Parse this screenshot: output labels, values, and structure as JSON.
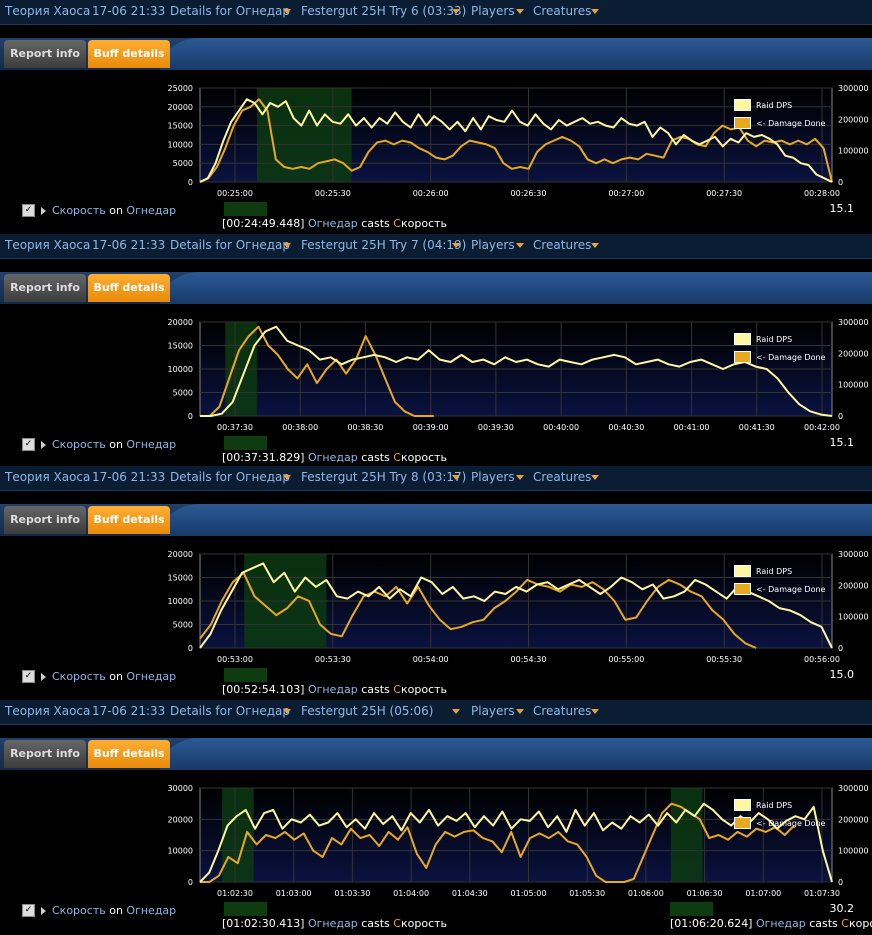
{
  "colors": {
    "raid": "#fff7a0",
    "dmg": "#e6a920",
    "buff": "#0c3a10",
    "plot_top": "#000000",
    "plot_bot": "#0a1240"
  },
  "legend": {
    "raid": "Raid DPS",
    "dmg": "<- Damage Done"
  },
  "tabs": {
    "report": "Report info",
    "buff": "Buff details"
  },
  "panels": [
    {
      "guild": "Теория Хаоса",
      "date": "17-06 21:33",
      "details": "Details for Огнедар",
      "try": "Festergut 25H Try 6 (03:33)",
      "players": "Players",
      "creatures": "Creatures",
      "check": {
        "spell": "Скорость",
        "on": "on",
        "who": "Огнедар"
      },
      "cast": {
        "time": "[00:24:49.448]",
        "who": "Огнедар",
        "verb": "casts",
        "spell_first": "С",
        "spell_rest": "корость"
      },
      "rnum": "15.1",
      "chart_data": {
        "type": "line",
        "x_ticks": [
          "00:25:00",
          "00:25:30",
          "00:26:00",
          "00:26:30",
          "00:27:00",
          "00:27:30",
          "00:28:00"
        ],
        "y_left_ticks": [
          "25000",
          "20000",
          "15000",
          "10000",
          "5000",
          "0"
        ],
        "y_right_ticks": [
          "300000",
          "200000",
          "100000",
          "0"
        ],
        "ylim_left": [
          0,
          25000
        ],
        "ylim_right": [
          0,
          300000
        ],
        "buff_spans": [
          [
            0.09,
            0.24
          ]
        ],
        "series": [
          {
            "name": "Raid DPS",
            "values": [
              0,
              1000,
              5000,
              11000,
              16000,
              19000,
              22000,
              21000,
              18000,
              21000,
              20000,
              21500,
              17000,
              15000,
              19000,
              15000,
              18000,
              16000,
              15500,
              18000,
              15000,
              17000,
              14500,
              17000,
              15500,
              18500,
              16000,
              14500,
              18000,
              15000,
              17500,
              16000,
              14000,
              16000,
              13500,
              17000,
              14000,
              17500,
              16500,
              16000,
              19000,
              16000,
              15000,
              18000,
              15500,
              14000,
              16500,
              15000,
              16000,
              17000,
              15500,
              16000,
              15000,
              14500,
              17000,
              15500,
              15000,
              16000,
              12000,
              14500,
              13000,
              10000,
              12500,
              11000,
              10000,
              11000,
              12000,
              9500,
              11500,
              10500,
              13000,
              12000,
              12500,
              11500,
              10000,
              7000,
              6500,
              5000,
              4500,
              2000,
              1000,
              0
            ]
          },
          {
            "name": "Damage Done",
            "values": [
              0,
              1000,
              4000,
              9000,
              15000,
              19000,
              20000,
              22000,
              19000,
              6000,
              4000,
              3500,
              4000,
              3500,
              5000,
              5500,
              6000,
              5000,
              3000,
              4000,
              8000,
              10500,
              11000,
              10000,
              11000,
              10500,
              9000,
              8000,
              6500,
              6000,
              7000,
              9500,
              11000,
              10500,
              10000,
              9000,
              5000,
              3500,
              4000,
              3500,
              8000,
              10000,
              11000,
              12000,
              11000,
              9500,
              6000,
              5000,
              6000,
              5000,
              6000,
              6500,
              6000,
              7500,
              7000,
              6500,
              11000,
              12000,
              11500,
              10000,
              9500,
              13000,
              15000,
              14000,
              14500,
              11000,
              9500,
              11000,
              10500,
              11000,
              10000,
              11000,
              10000,
              11500,
              9000,
              0
            ]
          }
        ]
      }
    },
    {
      "guild": "Теория Хаоса",
      "date": "17-06 21:33",
      "details": "Details for Огнедар",
      "try": "Festergut 25H Try 7 (04:19)",
      "players": "Players",
      "creatures": "Creatures",
      "check": {
        "spell": "Скорость",
        "on": "on",
        "who": "Огнедар"
      },
      "cast": {
        "time": "[00:37:31.829]",
        "who": "Огнедар",
        "verb": "casts",
        "spell_first": "С",
        "spell_rest": "корость"
      },
      "rnum": "15.1",
      "chart_data": {
        "type": "line",
        "x_ticks": [
          "00:37:30",
          "00:38:00",
          "00:38:30",
          "00:39:00",
          "00:39:30",
          "00:40:00",
          "00:40:30",
          "00:41:00",
          "00:41:30",
          "00:42:00"
        ],
        "y_left_ticks": [
          "20000",
          "15000",
          "10000",
          "5000",
          "0"
        ],
        "y_right_ticks": [
          "300000",
          "200000",
          "100000",
          "0"
        ],
        "ylim_left": [
          0,
          20000
        ],
        "ylim_right": [
          0,
          300000
        ],
        "buff_spans": [
          [
            0.04,
            0.09
          ]
        ],
        "series": [
          {
            "name": "Raid DPS",
            "values": [
              0,
              0,
              500,
              3000,
              9000,
              15000,
              18000,
              19000,
              16000,
              15000,
              14000,
              12000,
              12500,
              11000,
              12000,
              12500,
              13000,
              12500,
              11500,
              12500,
              12000,
              14000,
              12000,
              11500,
              13000,
              11500,
              12000,
              11000,
              12500,
              11500,
              12000,
              11000,
              10500,
              12000,
              11500,
              11000,
              12000,
              12500,
              13000,
              12500,
              11000,
              11500,
              12000,
              11000,
              10500,
              11500,
              12000,
              11000,
              10000,
              11000,
              11500,
              10500,
              10000,
              8000,
              5000,
              2500,
              1000,
              300,
              0
            ]
          },
          {
            "name": "Damage Done",
            "values": [
              0,
              0,
              2000,
              8000,
              14000,
              17000,
              19000,
              15000,
              13000,
              10000,
              8000,
              11000,
              7000,
              10000,
              12000,
              9000,
              12000,
              17000,
              13000,
              8000,
              3000,
              1000,
              0,
              0,
              0
            ]
          }
        ]
      }
    },
    {
      "guild": "Теория Хаоса",
      "date": "17-06 21:33",
      "details": "Details for Огнедар",
      "try": "Festergut 25H Try 8 (03:17)",
      "players": "Players",
      "creatures": "Creatures",
      "check": {
        "spell": "Скорость",
        "on": "on",
        "who": "Огнедар"
      },
      "cast": {
        "time": "[00:52:54.103]",
        "who": "Огнедар",
        "verb": "casts",
        "spell_first": "С",
        "spell_rest": "корость"
      },
      "rnum": "15.0",
      "chart_data": {
        "type": "line",
        "x_ticks": [
          "00:53:00",
          "00:53:30",
          "00:54:00",
          "00:54:30",
          "00:55:00",
          "00:55:30",
          "00:56:00"
        ],
        "y_left_ticks": [
          "20000",
          "15000",
          "10000",
          "5000",
          "0"
        ],
        "y_right_ticks": [
          "300000",
          "200000",
          "100000",
          "0"
        ],
        "ylim_left": [
          0,
          20000
        ],
        "ylim_right": [
          0,
          300000
        ],
        "buff_spans": [
          [
            0.07,
            0.2
          ]
        ],
        "series": [
          {
            "name": "Raid DPS",
            "values": [
              0,
              3000,
              8000,
              12000,
              16000,
              17000,
              18000,
              14000,
              16000,
              12000,
              15000,
              13000,
              14500,
              11000,
              10500,
              12000,
              11000,
              13000,
              10500,
              12500,
              11000,
              15000,
              14000,
              11500,
              13000,
              10500,
              11000,
              10000,
              12000,
              11500,
              13000,
              12000,
              13500,
              14000,
              12500,
              13500,
              14500,
              13000,
              11500,
              13000,
              15000,
              14000,
              12500,
              13500,
              10500,
              11000,
              12000,
              14500,
              13500,
              12000,
              10500,
              13000,
              12000,
              11000,
              10000,
              8500,
              8000,
              7000,
              5500,
              4500,
              0
            ]
          },
          {
            "name": "Damage Done",
            "values": [
              2000,
              5000,
              10000,
              14000,
              16000,
              11000,
              9000,
              7000,
              8500,
              11000,
              10000,
              5000,
              3000,
              2500,
              7000,
              11000,
              12000,
              11000,
              13000,
              9500,
              13000,
              9000,
              6000,
              4000,
              4500,
              5500,
              6000,
              8500,
              10000,
              12000,
              14500,
              13500,
              13000,
              12000,
              13500,
              13000,
              14000,
              12500,
              10000,
              6000,
              6500,
              10000,
              13000,
              14500,
              13500,
              12000,
              11000,
              8000,
              6000,
              3000,
              1000,
              0
            ]
          }
        ]
      }
    },
    {
      "guild": "Теория Хаоса",
      "date": "17-06 21:33",
      "details": "Details for Огнедар",
      "try": "Festergut 25H (05:06)",
      "players": "Players",
      "creatures": "Creatures",
      "check": {
        "spell": "Скорость",
        "on": "on",
        "who": "Огнедар"
      },
      "cast": {
        "time": "[01:02:30.413]",
        "who": "Огнедар",
        "verb": "casts",
        "spell_first": "С",
        "spell_rest": "корость"
      },
      "cast2": {
        "time": "[01:06:20.624]",
        "who": "Огнедар",
        "verb": "casts",
        "spell_first": "С",
        "spell_rest": "корость"
      },
      "rnum": "30.2",
      "chart_data": {
        "type": "line",
        "x_ticks": [
          "01:02:30",
          "01:03:00",
          "01:03:30",
          "01:04:00",
          "01:04:30",
          "01:05:00",
          "01:05:30",
          "01:06:00",
          "01:06:30",
          "01:07:00",
          "01:07:30"
        ],
        "y_left_ticks": [
          "30000",
          "20000",
          "10000",
          "0"
        ],
        "y_right_ticks": [
          "300000",
          "200000",
          "100000",
          "0"
        ],
        "ylim_left": [
          0,
          30000
        ],
        "ylim_right": [
          0,
          300000
        ],
        "buff_spans": [
          [
            0.035,
            0.085
          ],
          [
            0.745,
            0.795
          ]
        ],
        "series": [
          {
            "name": "Raid DPS",
            "values": [
              0,
              3000,
              10000,
              18000,
              21000,
              23000,
              17000,
              22000,
              23000,
              17000,
              20000,
              19000,
              21500,
              18000,
              19000,
              22000,
              17500,
              20000,
              17000,
              22000,
              18500,
              21000,
              16500,
              22000,
              19000,
              23000,
              18000,
              21000,
              19500,
              22000,
              17500,
              21000,
              18000,
              22500,
              17000,
              20000,
              19500,
              22500,
              17500,
              21000,
              16000,
              23000,
              18000,
              22000,
              16500,
              19000,
              17000,
              21000,
              19000,
              21500,
              18000,
              22000,
              19000,
              23000,
              21000,
              25000,
              23000,
              20000,
              18000,
              21000,
              19000,
              22000,
              20000,
              17000,
              19500,
              21000,
              20000,
              24000,
              10000,
              0
            ]
          },
          {
            "name": "Damage Done",
            "values": [
              0,
              0,
              2000,
              8000,
              6000,
              16000,
              12000,
              15000,
              14000,
              16000,
              13500,
              15500,
              10000,
              8000,
              14000,
              12000,
              17000,
              14000,
              15000,
              11500,
              16000,
              13500,
              17500,
              9000,
              4500,
              12000,
              16000,
              14500,
              16000,
              16500,
              14000,
              13000,
              9500,
              16000,
              8000,
              14000,
              15500,
              14000,
              16000,
              13000,
              12000,
              8000,
              2000,
              0,
              0,
              0,
              1000,
              8000,
              15000,
              22000,
              25000,
              24000,
              22000,
              20000,
              14000,
              15000,
              13500,
              16000,
              14500,
              17000,
              16000,
              17500,
              15000,
              18000
            ]
          }
        ]
      }
    }
  ]
}
